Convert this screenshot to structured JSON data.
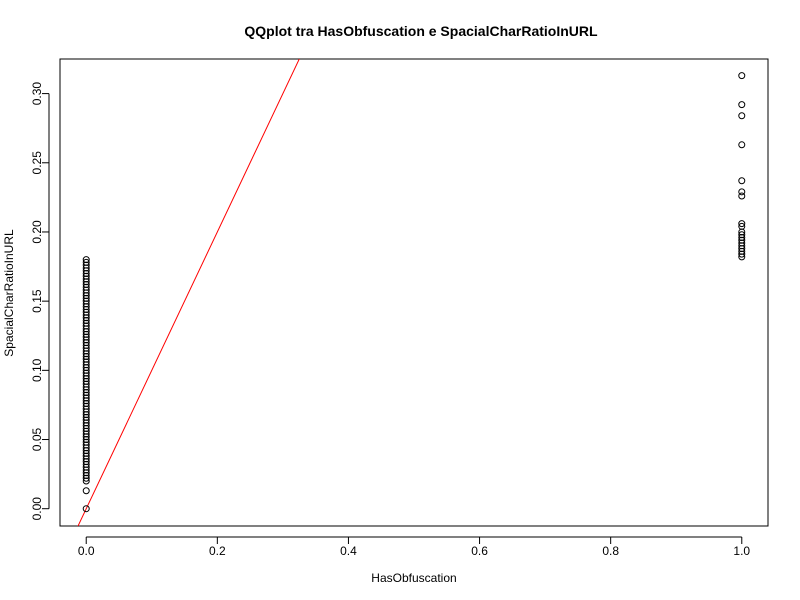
{
  "chart_data": {
    "type": "scatter",
    "title": "QQplot tra HasObfuscation e SpacialCharRatioInURL",
    "xlabel": "HasObfuscation",
    "ylabel": "SpacialCharRatioInURL",
    "xlim": [
      -0.04,
      1.04
    ],
    "ylim": [
      -0.0125,
      0.325
    ],
    "x_ticks": [
      0.0,
      0.2,
      0.4,
      0.6,
      0.8,
      1.0
    ],
    "x_tick_labels": [
      "0.0",
      "0.2",
      "0.4",
      "0.6",
      "0.8",
      "1.0"
    ],
    "y_ticks": [
      0.0,
      0.05,
      0.1,
      0.15,
      0.2,
      0.25,
      0.3
    ],
    "y_tick_labels": [
      "0.00",
      "0.05",
      "0.10",
      "0.15",
      "0.20",
      "0.25",
      "0.30"
    ],
    "grid": false,
    "point_color": "#000000",
    "line_color": "#ff0000",
    "dense_cluster": {
      "x": 0.0,
      "y_from": 0.02,
      "y_to": 0.18,
      "y_step": 0.002
    },
    "points": [
      {
        "x": 0.0,
        "y": 0.0
      },
      {
        "x": 0.0,
        "y": 0.013
      },
      {
        "x": 1.0,
        "y": 0.313
      },
      {
        "x": 1.0,
        "y": 0.292
      },
      {
        "x": 1.0,
        "y": 0.284
      },
      {
        "x": 1.0,
        "y": 0.263
      },
      {
        "x": 1.0,
        "y": 0.237
      },
      {
        "x": 1.0,
        "y": 0.229
      },
      {
        "x": 1.0,
        "y": 0.226
      },
      {
        "x": 1.0,
        "y": 0.206
      },
      {
        "x": 1.0,
        "y": 0.204
      },
      {
        "x": 1.0,
        "y": 0.2
      },
      {
        "x": 1.0,
        "y": 0.198
      },
      {
        "x": 1.0,
        "y": 0.196
      },
      {
        "x": 1.0,
        "y": 0.194
      },
      {
        "x": 1.0,
        "y": 0.192
      },
      {
        "x": 1.0,
        "y": 0.19
      },
      {
        "x": 1.0,
        "y": 0.188
      },
      {
        "x": 1.0,
        "y": 0.186
      },
      {
        "x": 1.0,
        "y": 0.184
      },
      {
        "x": 1.0,
        "y": 0.182
      }
    ],
    "reference_line": {
      "intercept": 0.0,
      "slope": 1.0
    }
  }
}
